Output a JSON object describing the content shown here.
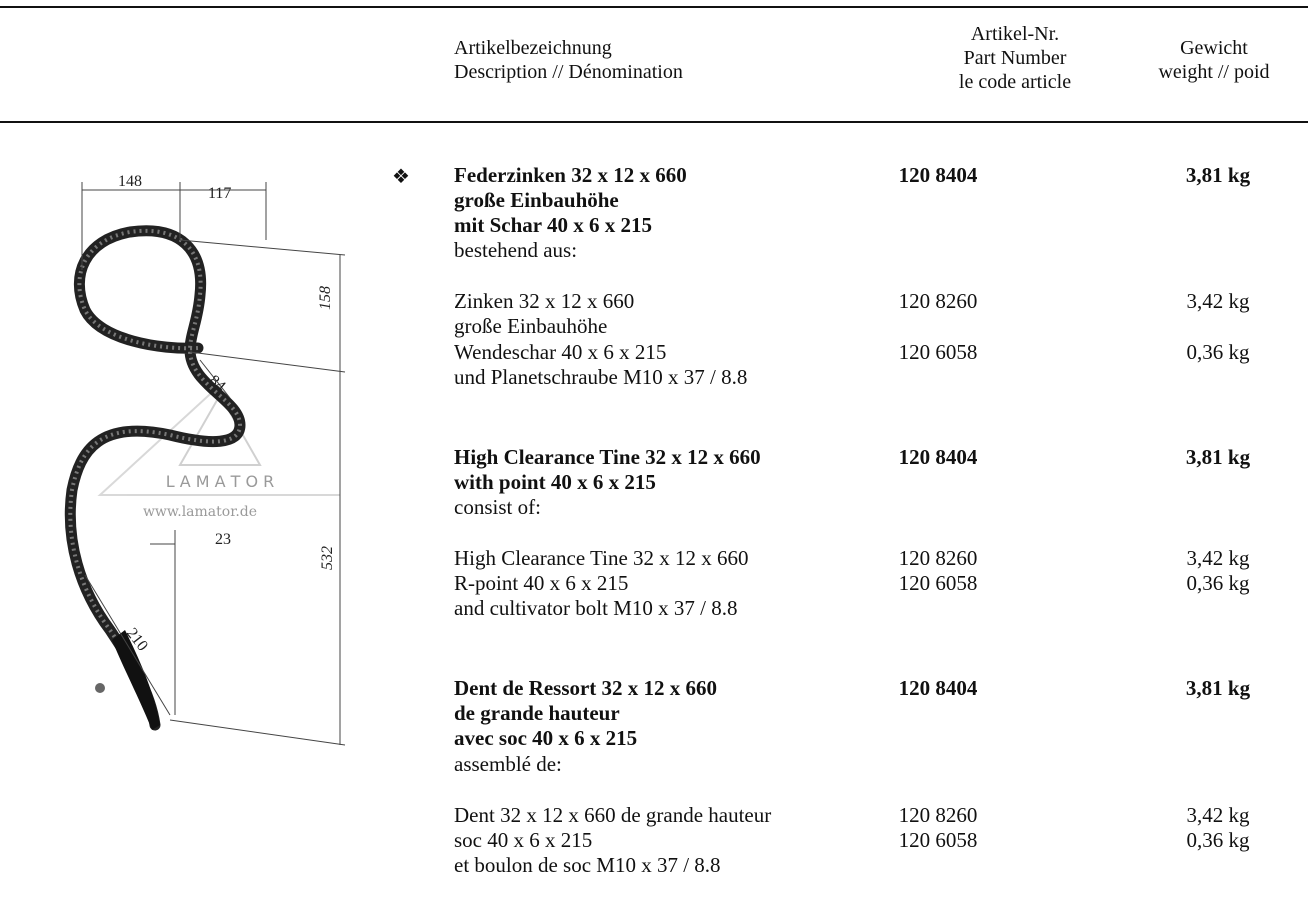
{
  "header": {
    "description": [
      "Artikelbezeichnung",
      "Description // Dénomination"
    ],
    "part_number": [
      "Artikel-Nr.",
      "Part Number",
      "le code article"
    ],
    "weight": [
      "Gewicht",
      "weight // poid"
    ]
  },
  "drawing": {
    "dimensions": {
      "d148": "148",
      "d117": "117",
      "d158": "158",
      "d84": "84",
      "d23": "23",
      "d532": "532",
      "d210": "210"
    },
    "watermark": {
      "brand": "L A M A T O R",
      "url": "www.lamator.de"
    }
  },
  "blocks": [
    {
      "title": [
        "Federzinken 32 x 12 x 660",
        "große Einbauhöhe",
        "mit Schar 40 x 6 x 215"
      ],
      "part": "120 8404",
      "weight": "3,81 kg",
      "intro": "bestehend aus:",
      "rows": [
        {
          "label": "Zinken 32 x 12 x 660",
          "part": "120 8260",
          "weight": "3,42 kg"
        },
        {
          "label": "große Einbauhöhe",
          "part": "",
          "weight": ""
        },
        {
          "label": "Wendeschar 40 x 6 x 215",
          "part": "120 6058",
          "weight": "0,36 kg"
        },
        {
          "label": "und Planetschraube M10 x 37 / 8.8",
          "part": "",
          "weight": ""
        }
      ]
    },
    {
      "title": [
        "High Clearance Tine 32 x 12 x 660",
        "with point 40 x 6 x 215"
      ],
      "part": "120 8404",
      "weight": "3,81 kg",
      "intro": "consist of:",
      "rows": [
        {
          "label": "High Clearance Tine 32 x 12 x 660",
          "part": "120 8260",
          "weight": "3,42 kg"
        },
        {
          "label": "R-point 40 x 6 x 215",
          "part": "120 6058",
          "weight": "0,36 kg"
        },
        {
          "label": "and cultivator bolt M10 x 37 / 8.8",
          "part": "",
          "weight": ""
        }
      ]
    },
    {
      "title": [
        "Dent de Ressort 32 x 12 x 660",
        "de grande hauteur",
        "avec soc 40 x 6 x 215"
      ],
      "part": "120 8404",
      "weight": "3,81 kg",
      "intro": "assemblé de:",
      "rows": [
        {
          "label": "Dent 32 x 12 x 660 de grande hauteur",
          "part": "120 8260",
          "weight": "3,42 kg"
        },
        {
          "label": "soc 40 x 6 x 215",
          "part": "120 6058",
          "weight": "0,36 kg"
        },
        {
          "label": "et boulon de soc M10 x 37 / 8.8",
          "part": "",
          "weight": ""
        }
      ]
    }
  ]
}
